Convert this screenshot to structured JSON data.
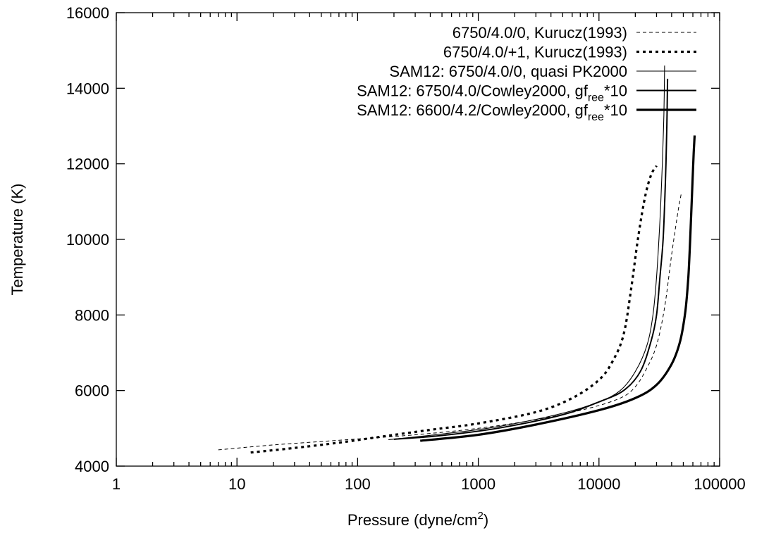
{
  "chart_data": {
    "type": "line",
    "xlabel_prefix": "Pressure (dyne/cm",
    "xlabel_sup": "2",
    "xlabel_suffix": ")",
    "ylabel": "Temperature (K)",
    "x_scale": "log",
    "xlim": [
      1,
      100000
    ],
    "ylim": [
      4000,
      16000
    ],
    "x_ticks": [
      1,
      10,
      100,
      1000,
      10000,
      100000
    ],
    "x_tick_labels": [
      "1",
      "10",
      "100",
      "1000",
      "10000",
      "100000"
    ],
    "y_ticks": [
      4000,
      6000,
      8000,
      10000,
      12000,
      14000,
      16000
    ],
    "y_tick_labels": [
      "4000",
      "6000",
      "8000",
      "10000",
      "12000",
      "14000",
      "16000"
    ],
    "grid": false,
    "legend_position": "top-right",
    "series": [
      {
        "legend_parts": [
          {
            "text": "6750/4.0/0, Kurucz(1993)"
          }
        ],
        "style": "thin-dashed",
        "points": [
          [
            7,
            4430
          ],
          [
            20,
            4560
          ],
          [
            50,
            4650
          ],
          [
            100,
            4720
          ],
          [
            300,
            4830
          ],
          [
            1000,
            5000
          ],
          [
            3000,
            5230
          ],
          [
            8000,
            5520
          ],
          [
            15000,
            5800
          ],
          [
            20000,
            6100
          ],
          [
            25000,
            6600
          ],
          [
            30000,
            7200
          ],
          [
            35000,
            8200
          ],
          [
            40000,
            9600
          ],
          [
            45000,
            10700
          ],
          [
            48000,
            11200
          ]
        ]
      },
      {
        "legend_parts": [
          {
            "text": "6750/4.0/+1, Kurucz(1993)"
          }
        ],
        "style": "bold-dotted",
        "points": [
          [
            13,
            4360
          ],
          [
            30,
            4480
          ],
          [
            70,
            4620
          ],
          [
            150,
            4770
          ],
          [
            400,
            4960
          ],
          [
            1000,
            5130
          ],
          [
            3000,
            5430
          ],
          [
            6000,
            5800
          ],
          [
            10000,
            6280
          ],
          [
            13000,
            6780
          ],
          [
            16000,
            7480
          ],
          [
            18500,
            8700
          ],
          [
            21000,
            10000
          ],
          [
            24000,
            11100
          ],
          [
            27000,
            11700
          ],
          [
            30000,
            11950
          ]
        ]
      },
      {
        "legend_parts": [
          {
            "text": "SAM12: 6750/4.0/0, quasi PK2000"
          }
        ],
        "style": "thin-solid",
        "points": [
          [
            180,
            4700
          ],
          [
            500,
            4850
          ],
          [
            1500,
            5050
          ],
          [
            5000,
            5400
          ],
          [
            10000,
            5700
          ],
          [
            15000,
            6000
          ],
          [
            20000,
            6500
          ],
          [
            25000,
            7200
          ],
          [
            28000,
            8000
          ],
          [
            30000,
            9000
          ],
          [
            32000,
            10500
          ],
          [
            33500,
            12000
          ],
          [
            34500,
            13300
          ],
          [
            35000,
            14600
          ]
        ]
      },
      {
        "legend_parts": [
          {
            "text": "SAM12: 6750/4.0/Cowley2000, gf"
          },
          {
            "text": "ree",
            "sub": true
          },
          {
            "text": "*10"
          }
        ],
        "style": "medium-solid",
        "points": [
          [
            200,
            4710
          ],
          [
            500,
            4810
          ],
          [
            1500,
            5010
          ],
          [
            5000,
            5360
          ],
          [
            10000,
            5700
          ],
          [
            16000,
            6000
          ],
          [
            22000,
            6500
          ],
          [
            27000,
            7300
          ],
          [
            30000,
            8000
          ],
          [
            32000,
            9000
          ],
          [
            34000,
            10000
          ],
          [
            35500,
            11500
          ],
          [
            36500,
            13000
          ],
          [
            37000,
            14250
          ]
        ]
      },
      {
        "legend_parts": [
          {
            "text": "SAM12: 6600/4.2/Cowley2000, gf"
          },
          {
            "text": "ree",
            "sub": true
          },
          {
            "text": "*10"
          }
        ],
        "style": "thick-solid",
        "points": [
          [
            330,
            4670
          ],
          [
            1000,
            4830
          ],
          [
            3000,
            5100
          ],
          [
            10000,
            5480
          ],
          [
            20000,
            5800
          ],
          [
            30000,
            6150
          ],
          [
            40000,
            6700
          ],
          [
            47000,
            7300
          ],
          [
            52000,
            8100
          ],
          [
            55000,
            9000
          ],
          [
            57000,
            10000
          ],
          [
            59000,
            11200
          ],
          [
            61000,
            12300
          ],
          [
            62000,
            12750
          ]
        ]
      }
    ]
  }
}
